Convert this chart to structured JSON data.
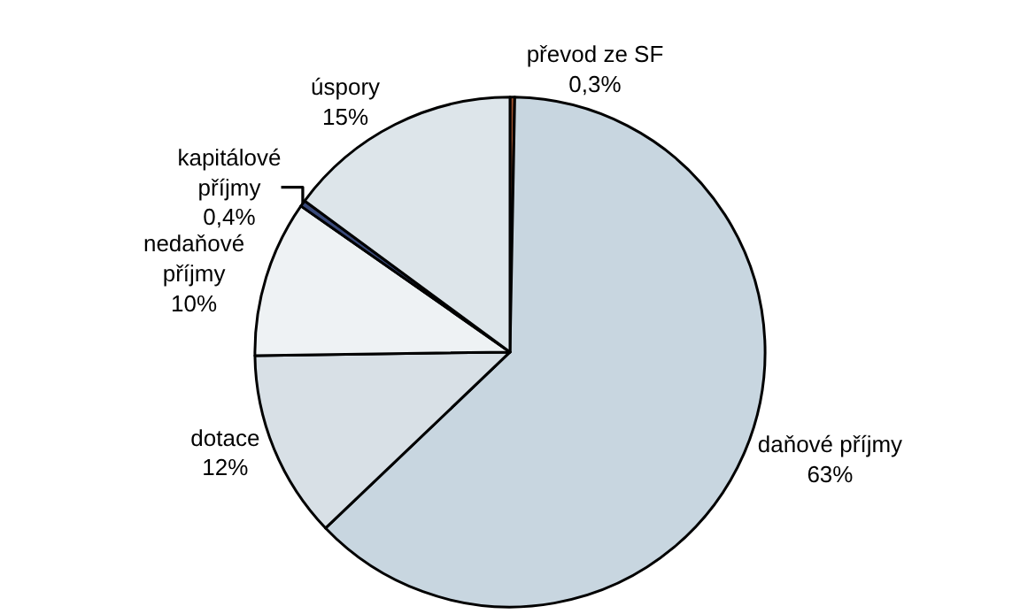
{
  "chart_data": {
    "type": "pie",
    "categories": [
      "převod ze SF",
      "daňové příjmy",
      "dotace",
      "nedaňové\npříjmy",
      "kapitálové\npříjmy",
      "úspory"
    ],
    "values": [
      0.3,
      63,
      12,
      10,
      0.4,
      15
    ],
    "value_labels": [
      "0,3%",
      "63%",
      "12%",
      "10%",
      "0,4%",
      "15%"
    ],
    "colors": [
      "#a0522d",
      "#c8d6e0",
      "#d8e0e6",
      "#eef2f4",
      "#3a4a7a",
      "#dde5ea"
    ],
    "legend": false
  }
}
